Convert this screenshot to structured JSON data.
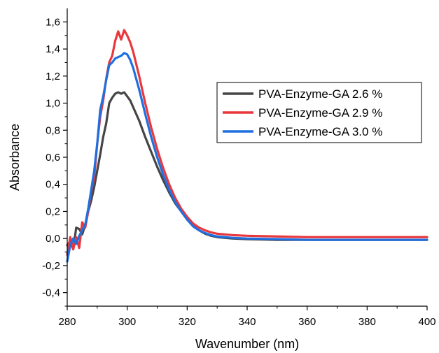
{
  "chart_data": {
    "type": "line",
    "xlabel": "Wavenumber (nm)",
    "ylabel": "Absorbance",
    "xlim": [
      280,
      400
    ],
    "ylim": [
      -0.5,
      1.7
    ],
    "x_ticks": [
      280,
      300,
      320,
      340,
      360,
      380,
      400
    ],
    "x_tick_labels": [
      "280",
      "300",
      "320",
      "340",
      "360",
      "380",
      "400"
    ],
    "y_ticks": [
      -0.4,
      -0.2,
      0.0,
      0.2,
      0.4,
      0.6,
      0.8,
      1.0,
      1.2,
      1.4,
      1.6
    ],
    "y_tick_labels": [
      "-0,4",
      "-0,2",
      "0,0",
      "0,2",
      "0,4",
      "0,6",
      "0,8",
      "1,0",
      "1,2",
      "1,4",
      "1,6"
    ],
    "grid": false,
    "legend_position": "top-right",
    "series": [
      {
        "name": "PVA-Enzyme-GA 2.6 %",
        "color": "#454545",
        "x": [
          280,
          281,
          282,
          283,
          284,
          285,
          286,
          287,
          288,
          289,
          290,
          291,
          292,
          293,
          294,
          295,
          296,
          297,
          298,
          299,
          300,
          301,
          302,
          304,
          306,
          308,
          310,
          312,
          314,
          316,
          318,
          320,
          322,
          324,
          326,
          328,
          330,
          335,
          340,
          350,
          360,
          370,
          380,
          390,
          400
        ],
        "y": [
          -0.05,
          -0.02,
          -0.08,
          0.08,
          0.07,
          0.03,
          0.1,
          0.2,
          0.28,
          0.38,
          0.5,
          0.62,
          0.75,
          0.85,
          1.0,
          1.04,
          1.07,
          1.08,
          1.07,
          1.08,
          1.05,
          1.02,
          0.97,
          0.87,
          0.75,
          0.64,
          0.53,
          0.43,
          0.34,
          0.26,
          0.2,
          0.14,
          0.09,
          0.06,
          0.035,
          0.02,
          0.01,
          0.0,
          -0.005,
          -0.01,
          -0.01,
          -0.01,
          -0.01,
          -0.01,
          -0.01
        ]
      },
      {
        "name": "PVA-Enzyme-GA 2.9 %",
        "color": "#e8383d",
        "x": [
          280,
          281,
          282,
          283,
          284,
          285,
          286,
          287,
          288,
          289,
          290,
          291,
          292,
          293,
          294,
          295,
          296,
          297,
          298,
          299,
          300,
          301,
          302,
          304,
          306,
          308,
          310,
          312,
          314,
          316,
          318,
          320,
          322,
          324,
          326,
          328,
          330,
          335,
          340,
          350,
          360,
          370,
          380,
          390,
          400
        ],
        "y": [
          -0.12,
          0.01,
          -0.08,
          0.01,
          -0.07,
          0.12,
          0.08,
          0.2,
          0.35,
          0.45,
          0.7,
          0.9,
          1.02,
          1.18,
          1.3,
          1.35,
          1.46,
          1.53,
          1.47,
          1.54,
          1.5,
          1.45,
          1.38,
          1.2,
          1.0,
          0.82,
          0.66,
          0.52,
          0.4,
          0.3,
          0.22,
          0.16,
          0.11,
          0.08,
          0.06,
          0.045,
          0.035,
          0.025,
          0.02,
          0.015,
          0.01,
          0.01,
          0.01,
          0.01,
          0.01
        ]
      },
      {
        "name": "PVA-Enzyme-GA 3.0 %",
        "color": "#1f6fe0",
        "x": [
          280,
          281,
          282,
          283,
          284,
          285,
          286,
          287,
          288,
          289,
          290,
          291,
          292,
          293,
          294,
          295,
          296,
          297,
          298,
          299,
          300,
          301,
          302,
          304,
          306,
          308,
          310,
          312,
          314,
          316,
          318,
          320,
          322,
          324,
          326,
          328,
          330,
          335,
          340,
          350,
          360,
          370,
          380,
          390,
          400
        ],
        "y": [
          -0.17,
          -0.05,
          0.0,
          -0.04,
          0.02,
          0.06,
          0.1,
          0.22,
          0.36,
          0.5,
          0.7,
          0.95,
          1.05,
          1.17,
          1.28,
          1.3,
          1.33,
          1.34,
          1.35,
          1.37,
          1.36,
          1.32,
          1.26,
          1.1,
          0.92,
          0.75,
          0.6,
          0.47,
          0.36,
          0.27,
          0.2,
          0.14,
          0.09,
          0.06,
          0.04,
          0.025,
          0.015,
          0.005,
          0.0,
          -0.005,
          -0.01,
          -0.01,
          -0.01,
          -0.01,
          -0.01
        ]
      }
    ]
  }
}
